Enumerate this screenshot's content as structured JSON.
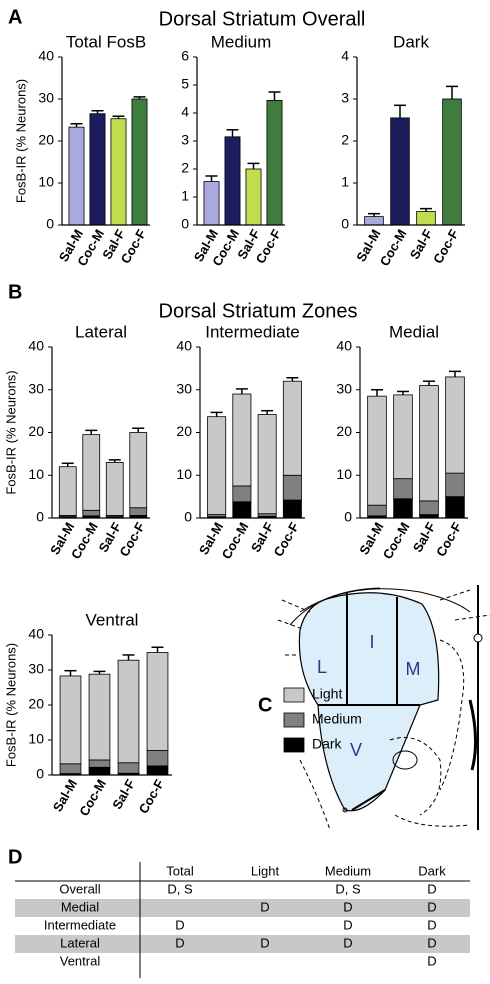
{
  "panels": {
    "a": "A",
    "b": "B",
    "c": "C",
    "d": "D"
  },
  "headings": {
    "overall": "Dorsal Striatum Overall",
    "zones": "Dorsal Striatum Zones"
  },
  "chart_data": [
    {
      "type": "bar",
      "title": "Total FosB",
      "y_label": "FosB-IR (% Neurons)",
      "categories": [
        "Sal-M",
        "Coc-M",
        "Sal-F",
        "Coc-F"
      ],
      "values": [
        23.3,
        26.5,
        25.3,
        30.0
      ],
      "errors": [
        0.8,
        0.7,
        0.6,
        0.5
      ],
      "colors": [
        "#a9a9e0",
        "#1c1c5e",
        "#bfdd4e",
        "#3e7d3e"
      ],
      "ylim": [
        0,
        40
      ],
      "yticks": [
        0,
        10,
        20,
        30,
        40
      ]
    },
    {
      "type": "bar",
      "title": "Medium",
      "categories": [
        "Sal-M",
        "Coc-M",
        "Sal-F",
        "Coc-F"
      ],
      "values": [
        1.55,
        3.15,
        2.0,
        4.45
      ],
      "errors": [
        0.2,
        0.25,
        0.2,
        0.3
      ],
      "colors": [
        "#a9a9e0",
        "#1c1c5e",
        "#bfdd4e",
        "#3e7d3e"
      ],
      "ylim": [
        0,
        6
      ],
      "yticks": [
        0,
        1,
        2,
        3,
        4,
        5,
        6
      ]
    },
    {
      "type": "bar",
      "title": "Dark",
      "categories": [
        "Sal-M",
        "Coc-M",
        "Sal-F",
        "Coc-F"
      ],
      "values": [
        0.2,
        2.55,
        0.32,
        3.0
      ],
      "errors": [
        0.07,
        0.3,
        0.07,
        0.3
      ],
      "colors": [
        "#a9a9e0",
        "#1c1c5e",
        "#bfdd4e",
        "#3e7d3e"
      ],
      "ylim": [
        0,
        4
      ],
      "yticks": [
        0,
        1,
        2,
        3,
        4
      ]
    },
    {
      "type": "stacked_bar",
      "title": "Lateral",
      "y_label": "FosB-IR (% Neurons)",
      "categories": [
        "Sal-M",
        "Coc-M",
        "Sal-F",
        "Coc-F"
      ],
      "series": [
        {
          "color": "#c8c8c8",
          "values": [
            11.4,
            17.7,
            12.4,
            17.6
          ]
        },
        {
          "color": "#808080",
          "values": [
            0.3,
            1.3,
            0.3,
            1.8
          ]
        },
        {
          "color": "#000000",
          "values": [
            0.3,
            0.5,
            0.3,
            0.6
          ]
        }
      ],
      "errors": [
        0.8,
        1.0,
        0.6,
        1.0
      ],
      "ylim": [
        0,
        40
      ],
      "yticks": [
        0,
        10,
        20,
        30,
        40
      ]
    },
    {
      "type": "stacked_bar",
      "title": "Intermediate",
      "categories": [
        "Sal-M",
        "Coc-M",
        "Sal-F",
        "Coc-F"
      ],
      "series": [
        {
          "color": "#c8c8c8",
          "values": [
            22.9,
            21.5,
            23.2,
            22.0
          ]
        },
        {
          "color": "#808080",
          "values": [
            0.5,
            3.7,
            0.6,
            5.8
          ]
        },
        {
          "color": "#000000",
          "values": [
            0.3,
            3.8,
            0.4,
            4.2
          ]
        }
      ],
      "errors": [
        1.0,
        1.2,
        0.9,
        0.8
      ],
      "ylim": [
        0,
        40
      ],
      "yticks": [
        0,
        10,
        20,
        30,
        40
      ]
    },
    {
      "type": "stacked_bar",
      "title": "Medial",
      "categories": [
        "Sal-M",
        "Coc-M",
        "Sal-F",
        "Coc-F"
      ],
      "series": [
        {
          "color": "#c8c8c8",
          "values": [
            25.5,
            19.6,
            27.0,
            22.5
          ]
        },
        {
          "color": "#808080",
          "values": [
            2.5,
            4.7,
            3.2,
            5.5
          ]
        },
        {
          "color": "#000000",
          "values": [
            0.5,
            4.5,
            0.8,
            5.0
          ]
        }
      ],
      "errors": [
        1.5,
        0.8,
        1.0,
        1.3
      ],
      "ylim": [
        0,
        40
      ],
      "yticks": [
        0,
        10,
        20,
        30,
        40
      ]
    },
    {
      "type": "stacked_bar",
      "title": "Ventral",
      "y_label": "FosB-IR (% Neurons)",
      "categories": [
        "Sal-M",
        "Coc-M",
        "Sal-F",
        "Coc-F"
      ],
      "series": [
        {
          "name": "Light",
          "color": "#c8c8c8",
          "values": [
            25.1,
            24.5,
            29.3,
            28.0
          ]
        },
        {
          "name": "Medium",
          "color": "#808080",
          "values": [
            2.8,
            2.1,
            3.0,
            4.4
          ]
        },
        {
          "name": "Dark",
          "color": "#000000",
          "values": [
            0.4,
            2.2,
            0.5,
            2.6
          ]
        }
      ],
      "errors": [
        1.5,
        0.8,
        1.5,
        1.5
      ],
      "ylim": [
        0,
        40
      ],
      "yticks": [
        0,
        10,
        20,
        30,
        40
      ],
      "legend": "right"
    }
  ],
  "diagram": {
    "labels": [
      "L",
      "I",
      "M",
      "V"
    ]
  },
  "table": {
    "columns": [
      "Total",
      "Light",
      "Medium",
      "Dark"
    ],
    "rows": [
      [
        "Overall",
        "D, S",
        null,
        "D, S",
        "D"
      ],
      [
        "Medial",
        null,
        "D",
        "D",
        "D"
      ],
      [
        "Intermediate",
        "D",
        null,
        "D",
        "D"
      ],
      [
        "Lateral",
        "D",
        "D",
        "D",
        "D"
      ],
      [
        "Ventral",
        null,
        null,
        null,
        "D"
      ]
    ]
  }
}
